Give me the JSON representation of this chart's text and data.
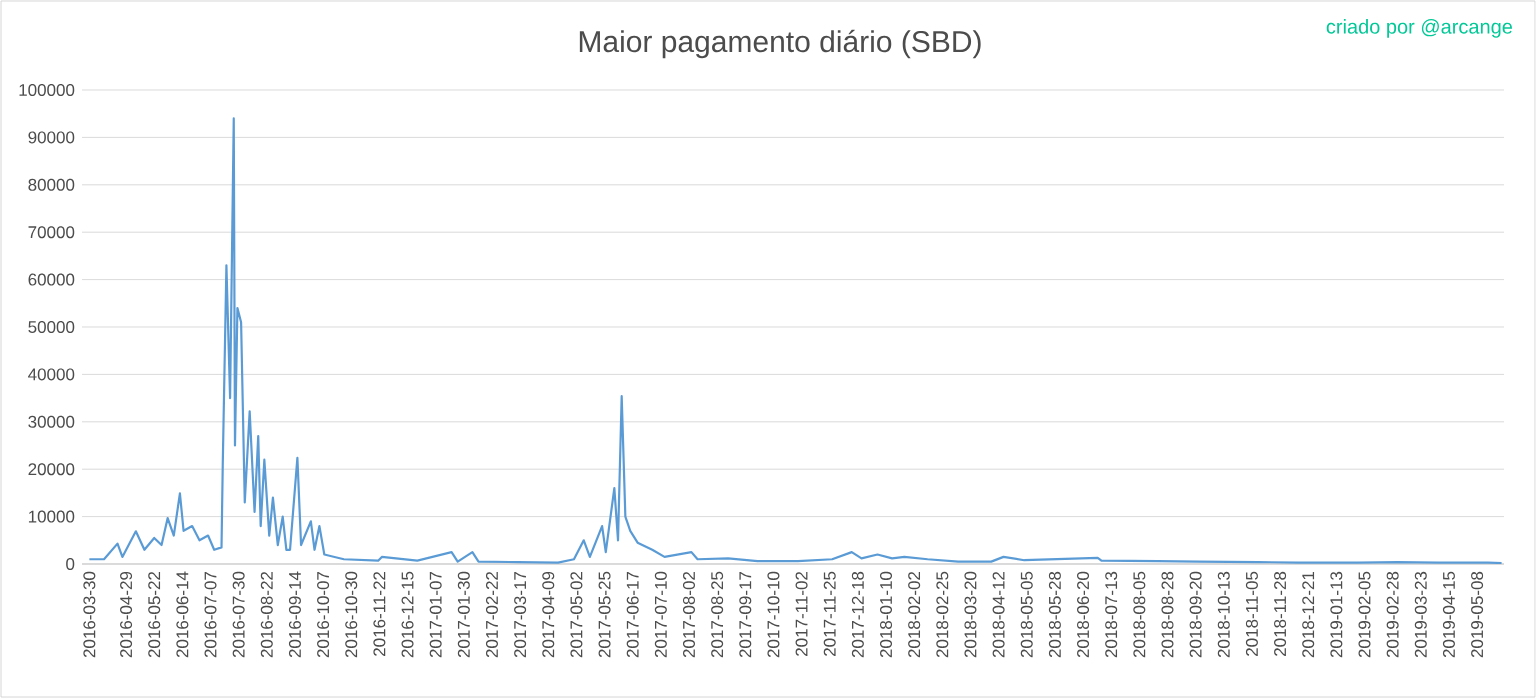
{
  "chart_data": {
    "type": "line",
    "title": "Maior pagamento diário (SBD)",
    "annotations": [
      "criado por @arcange"
    ],
    "x": [
      "2016-03-30",
      "2016-04-11",
      "2016-04-22",
      "2016-04-26",
      "2016-05-07",
      "2016-05-14",
      "2016-05-22",
      "2016-05-28",
      "2016-06-02",
      "2016-06-07",
      "2016-06-12",
      "2016-06-15",
      "2016-06-22",
      "2016-06-28",
      "2016-07-05",
      "2016-07-10",
      "2016-07-16",
      "2016-07-17",
      "2016-07-20",
      "2016-07-23",
      "2016-07-26",
      "2016-07-27",
      "2016-07-29",
      "2016-08-01",
      "2016-08-04",
      "2016-08-08",
      "2016-08-12",
      "2016-08-15",
      "2016-08-17",
      "2016-08-20",
      "2016-08-24",
      "2016-08-27",
      "2016-08-31",
      "2016-09-04",
      "2016-09-07",
      "2016-09-10",
      "2016-09-16",
      "2016-09-19",
      "2016-09-27",
      "2016-09-30",
      "2016-10-04",
      "2016-10-08",
      "2016-10-24",
      "2016-11-21",
      "2016-11-24",
      "2016-12-23",
      "2017-01-20",
      "2017-01-25",
      "2017-02-06",
      "2017-02-11",
      "2017-03-15",
      "2017-04-17",
      "2017-04-30",
      "2017-05-08",
      "2017-05-13",
      "2017-05-23",
      "2017-05-26",
      "2017-06-02",
      "2017-06-05",
      "2017-06-08",
      "2017-06-11",
      "2017-06-15",
      "2017-06-21",
      "2017-07-03",
      "2017-07-13",
      "2017-08-04",
      "2017-08-09",
      "2017-09-03",
      "2017-09-27",
      "2017-10-30",
      "2017-11-27",
      "2017-12-13",
      "2017-12-21",
      "2018-01-03",
      "2018-01-15",
      "2018-01-25",
      "2018-02-13",
      "2018-03-10",
      "2018-04-06",
      "2018-04-16",
      "2018-05-03",
      "2018-07-02",
      "2018-07-05",
      "2018-08-20",
      "2018-09-22",
      "2018-11-10",
      "2018-12-13",
      "2019-01-31",
      "2019-03-04",
      "2019-04-06",
      "2019-05-17",
      "2019-05-28"
    ],
    "series": [
      {
        "color": "#5b9bd5",
        "values": [
          1000,
          1000,
          4300,
          1500,
          6900,
          3000,
          5500,
          4000,
          9700,
          6000,
          14900,
          7000,
          8000,
          5000,
          6000,
          3000,
          3500,
          20700,
          63000,
          35000,
          94000,
          25000,
          54000,
          51000,
          13000,
          32200,
          11000,
          27000,
          8000,
          22000,
          6000,
          14000,
          4000,
          10000,
          3000,
          3000,
          22400,
          4000,
          9000,
          3000,
          8000,
          2000,
          1000,
          700,
          1500,
          700,
          2500,
          500,
          2500,
          500,
          400,
          300,
          1000,
          5000,
          1500,
          8000,
          2500,
          16000,
          5000,
          35400,
          10000,
          7000,
          4500,
          3000,
          1500,
          2500,
          1000,
          1200,
          600,
          600,
          1000,
          2500,
          1200,
          2000,
          1200,
          1500,
          1000,
          500,
          500,
          1500,
          800,
          1300,
          700,
          600,
          500,
          400,
          300,
          300,
          400,
          300,
          300,
          200
        ]
      }
    ],
    "xlim": [
      "2016-03-24",
      "2019-05-30"
    ],
    "xticks": [
      "2016-03-30",
      "2016-04-29",
      "2016-05-22",
      "2016-06-14",
      "2016-07-07",
      "2016-07-30",
      "2016-08-22",
      "2016-09-14",
      "2016-10-07",
      "2016-10-30",
      "2016-11-22",
      "2016-12-15",
      "2017-01-07",
      "2017-01-30",
      "2017-02-22",
      "2017-03-17",
      "2017-04-09",
      "2017-05-02",
      "2017-05-25",
      "2017-06-17",
      "2017-07-10",
      "2017-08-02",
      "2017-08-25",
      "2017-09-17",
      "2017-10-10",
      "2017-11-02",
      "2017-11-25",
      "2017-12-18",
      "2018-01-10",
      "2018-02-02",
      "2018-02-25",
      "2018-03-20",
      "2018-04-12",
      "2018-05-05",
      "2018-05-28",
      "2018-06-20",
      "2018-07-13",
      "2018-08-05",
      "2018-08-28",
      "2018-09-20",
      "2018-10-13",
      "2018-11-05",
      "2018-11-28",
      "2018-12-21",
      "2019-01-13",
      "2019-02-05",
      "2019-02-28",
      "2019-03-23",
      "2019-04-15",
      "2019-05-08"
    ],
    "ylim": [
      0,
      100000
    ],
    "yticks": [
      0,
      10000,
      20000,
      30000,
      40000,
      50000,
      60000,
      70000,
      80000,
      90000,
      100000
    ],
    "grid": "y"
  }
}
